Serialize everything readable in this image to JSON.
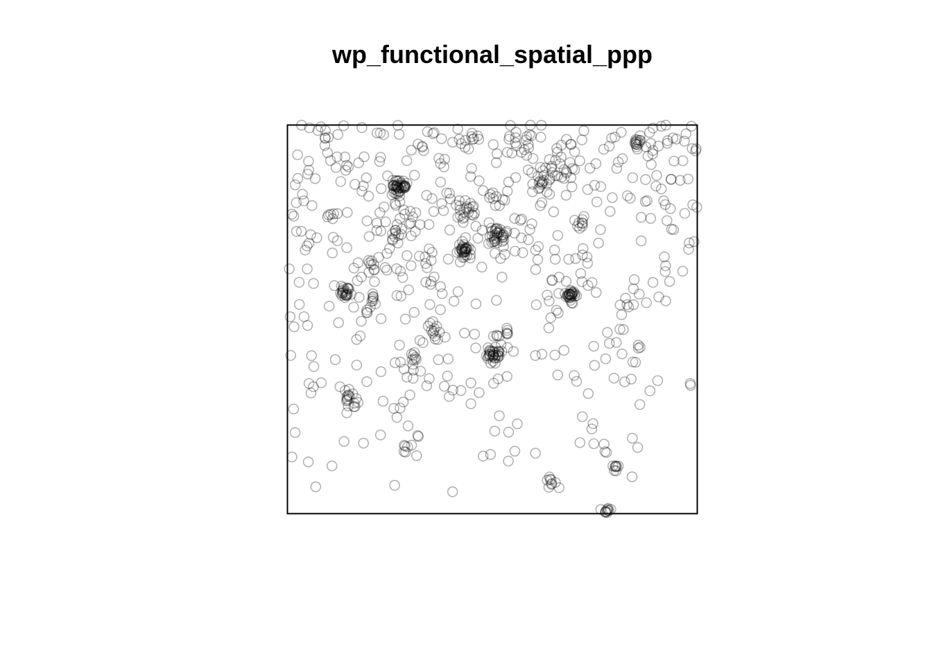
{
  "chart_data": {
    "type": "scatter",
    "title": "wp_functional_spatial_ppp",
    "xlabel": "",
    "ylabel": "",
    "xlim": [
      0,
      100
    ],
    "ylim": [
      0,
      100
    ],
    "grid": false,
    "axes_shown": false,
    "marker": "open-circle",
    "marker_alpha": 0.3,
    "point_color": "#000000",
    "clusters": [
      {
        "x": 27.2,
        "y": 84.2,
        "n": 40,
        "spread": 0.9
      },
      {
        "x": 43.1,
        "y": 67.7,
        "n": 30,
        "spread": 0.8
      },
      {
        "x": 51.3,
        "y": 71.5,
        "n": 34,
        "spread": 1.2
      },
      {
        "x": 43.1,
        "y": 77.9,
        "n": 18,
        "spread": 1.3
      },
      {
        "x": 14.2,
        "y": 57.0,
        "n": 22,
        "spread": 0.8
      },
      {
        "x": 69.4,
        "y": 55.8,
        "n": 26,
        "spread": 0.9
      },
      {
        "x": 50.3,
        "y": 40.8,
        "n": 32,
        "spread": 1.2
      },
      {
        "x": 14.8,
        "y": 29.5,
        "n": 14,
        "spread": 0.9
      },
      {
        "x": 85.0,
        "y": 95.2,
        "n": 12,
        "spread": 0.6
      },
      {
        "x": 61.8,
        "y": 84.2,
        "n": 14,
        "spread": 1.4
      },
      {
        "x": 64.1,
        "y": 8.6,
        "n": 8,
        "spread": 0.6
      },
      {
        "x": 77.7,
        "y": 1.0,
        "n": 10,
        "spread": 0.7
      },
      {
        "x": 80.1,
        "y": 12.1,
        "n": 8,
        "spread": 0.5
      },
      {
        "x": 28.9,
        "y": 17.1,
        "n": 6,
        "spread": 0.6
      },
      {
        "x": 31.1,
        "y": 40.1,
        "n": 8,
        "spread": 0.8
      },
      {
        "x": 35.5,
        "y": 47.1,
        "n": 8,
        "spread": 1.0
      },
      {
        "x": 58.0,
        "y": 95.0,
        "n": 10,
        "spread": 1.4
      },
      {
        "x": 68.0,
        "y": 88.0,
        "n": 10,
        "spread": 1.6
      },
      {
        "x": 21.2,
        "y": 64.5,
        "n": 10,
        "spread": 1.4
      },
      {
        "x": 26.5,
        "y": 72.0,
        "n": 10,
        "spread": 1.2
      },
      {
        "x": 20.5,
        "y": 56.0,
        "n": 6,
        "spread": 0.8
      },
      {
        "x": 10.5,
        "y": 76.5,
        "n": 6,
        "spread": 0.9
      },
      {
        "x": 52.5,
        "y": 46.5,
        "n": 8,
        "spread": 1.2
      },
      {
        "x": 71.0,
        "y": 74.0,
        "n": 6,
        "spread": 0.9
      }
    ],
    "background": {
      "n": 540,
      "x_range": [
        0,
        100
      ],
      "y_range": [
        0,
        100
      ],
      "density": "higher toward upper half"
    }
  }
}
